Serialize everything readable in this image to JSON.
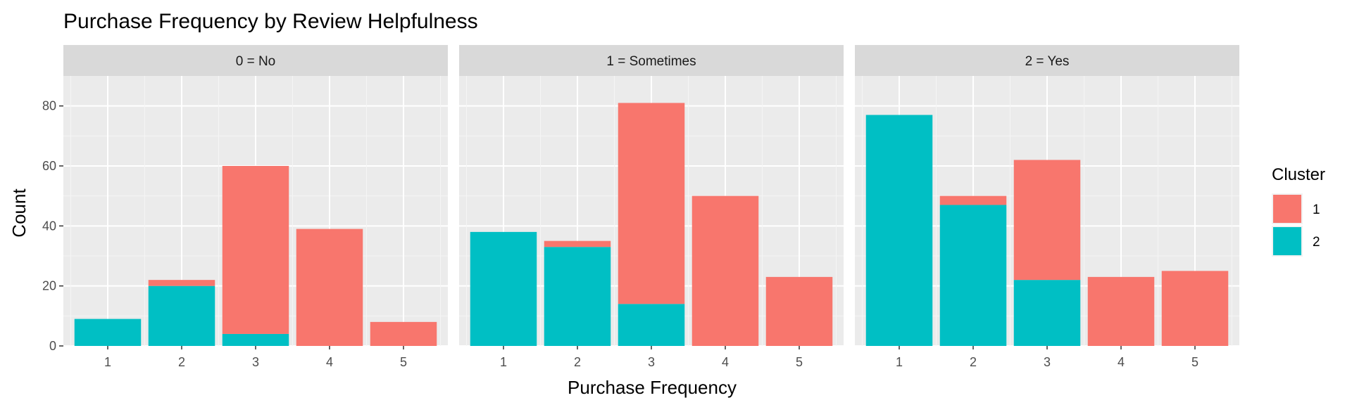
{
  "chart_data": {
    "type": "bar",
    "stacked": true,
    "faceted": true,
    "title": "Purchase Frequency by Review Helpfulness",
    "xlabel": "Purchase Frequency",
    "ylabel": "Count",
    "ylim": [
      0,
      90
    ],
    "yticks": [
      0,
      20,
      40,
      60,
      80
    ],
    "categories": [
      "1",
      "2",
      "3",
      "4",
      "5"
    ],
    "grid": true,
    "legend": {
      "title": "Cluster",
      "position": "right",
      "entries": [
        {
          "label": "1",
          "color": "#F8766D"
        },
        {
          "label": "2",
          "color": "#00BFC4"
        }
      ]
    },
    "panels": [
      {
        "label": "0 = No",
        "series": [
          {
            "name": "1",
            "color": "#F8766D",
            "values": [
              0,
              2,
              56,
              39,
              8
            ]
          },
          {
            "name": "2",
            "color": "#00BFC4",
            "values": [
              9,
              20,
              4,
              0,
              0
            ]
          }
        ]
      },
      {
        "label": "1 = Sometimes",
        "series": [
          {
            "name": "1",
            "color": "#F8766D",
            "values": [
              0,
              2,
              67,
              50,
              23
            ]
          },
          {
            "name": "2",
            "color": "#00BFC4",
            "values": [
              38,
              33,
              14,
              0,
              0
            ]
          }
        ]
      },
      {
        "label": "2 = Yes",
        "series": [
          {
            "name": "1",
            "color": "#F8766D",
            "values": [
              0,
              3,
              40,
              23,
              25
            ]
          },
          {
            "name": "2",
            "color": "#00BFC4",
            "values": [
              77,
              47,
              22,
              0,
              0
            ]
          }
        ]
      }
    ]
  }
}
